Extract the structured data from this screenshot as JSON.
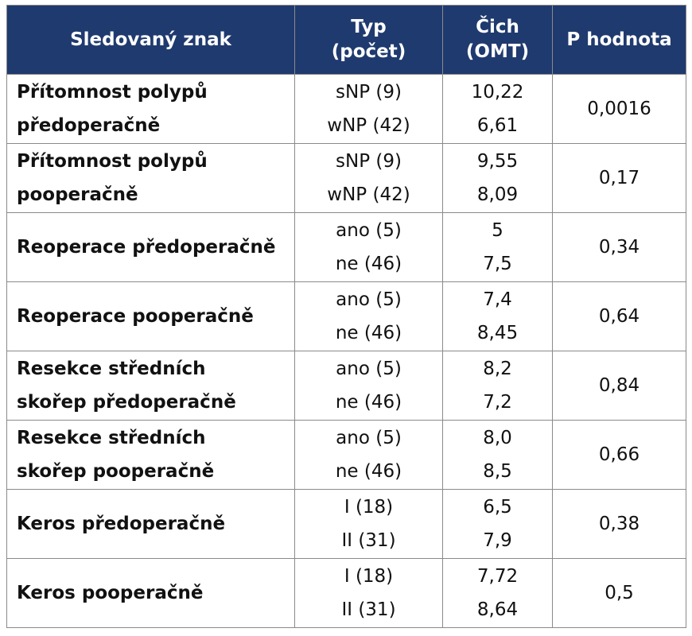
{
  "table": {
    "headers": {
      "trait": "Sledovaný znak",
      "type_line1": "Typ",
      "type_line2": "(počet)",
      "smell_line1": "Čich",
      "smell_line2": "(OMT)",
      "p": "P hodnota"
    },
    "rows": [
      {
        "trait1": "Přítomnost polypů",
        "trait2": "předoperačně",
        "type1": "sNP (9)",
        "type2": "wNP (42)",
        "val1": "10,22",
        "val2": "6,61",
        "p": "0,0016"
      },
      {
        "trait1": "Přítomnost polypů",
        "trait2": "pooperačně",
        "type1": "sNP (9)",
        "type2": "wNP (42)",
        "val1": "9,55",
        "val2": "8,09",
        "p": "0,17"
      },
      {
        "trait1": "Reoperace předoperačně",
        "trait2": "",
        "type1": "ano (5)",
        "type2": "ne (46)",
        "val1": "5",
        "val2": "7,5",
        "p": "0,34"
      },
      {
        "trait1": "Reoperace pooperačně",
        "trait2": "",
        "type1": "ano (5)",
        "type2": "ne (46)",
        "val1": "7,4",
        "val2": "8,45",
        "p": "0,64"
      },
      {
        "trait1": "Resekce středních",
        "trait2": "skořep předoperačně",
        "type1": "ano (5)",
        "type2": "ne (46)",
        "val1": "8,2",
        "val2": "7,2",
        "p": "0,84"
      },
      {
        "trait1": "Resekce středních",
        "trait2": "skořep pooperačně",
        "type1": "ano (5)",
        "type2": "ne (46)",
        "val1": "8,0",
        "val2": "8,5",
        "p": "0,66"
      },
      {
        "trait1": "Keros předoperačně",
        "trait2": "",
        "type1": "I (18)",
        "type2": "II (31)",
        "val1": "6,5",
        "val2": "7,9",
        "p": "0,38"
      },
      {
        "trait1": "Keros pooperačně",
        "trait2": "",
        "type1": "I (18)",
        "type2": "II (31)",
        "val1": "7,72",
        "val2": "8,64",
        "p": "0,5"
      }
    ]
  }
}
